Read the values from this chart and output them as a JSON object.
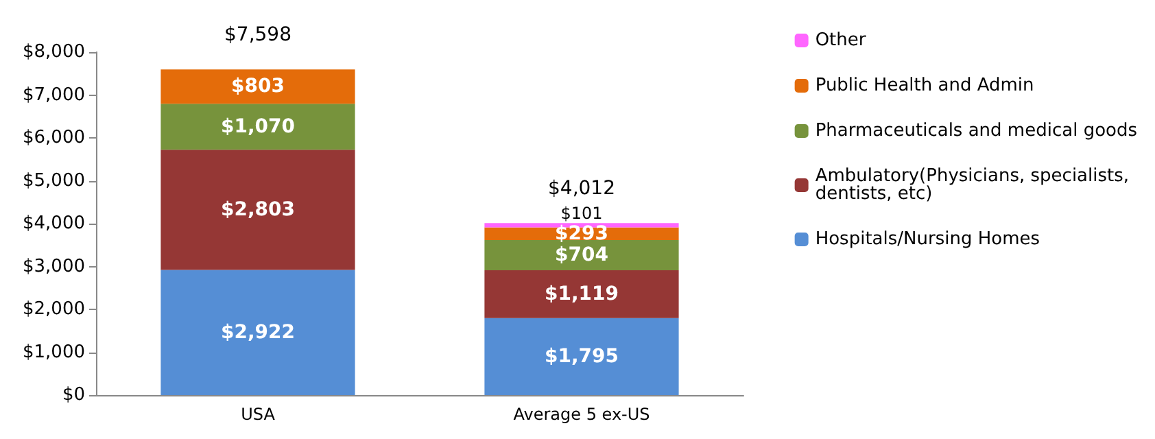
{
  "chart_data": {
    "type": "bar",
    "stacked": true,
    "categories": [
      "USA",
      "Average 5 ex-US"
    ],
    "series": [
      {
        "name": "Hospitals/Nursing Homes",
        "color": "#558ed5",
        "values": [
          2922,
          1795
        ],
        "value_labels": [
          "$2,922",
          "$1,795"
        ]
      },
      {
        "name": "Ambulatory(Physicians, specialists, dentists, etc)",
        "color": "#953735",
        "values": [
          2803,
          1119
        ],
        "value_labels": [
          "$2,803",
          "$1,119"
        ]
      },
      {
        "name": "Pharmaceuticals and medical goods",
        "color": "#77933c",
        "values": [
          1070,
          704
        ],
        "value_labels": [
          "$1,070",
          "$704"
        ]
      },
      {
        "name": "Public Health and Admin",
        "color": "#e46c0a",
        "values": [
          803,
          293
        ],
        "value_labels": [
          "$803",
          "$293"
        ]
      },
      {
        "name": "Other",
        "color": "#ff66ff",
        "values": [
          null,
          101
        ],
        "value_labels": [
          null,
          "$101"
        ]
      }
    ],
    "totals": [
      "$7,598",
      "$4,012"
    ],
    "ylim": [
      0,
      8000
    ],
    "yticks": [
      {
        "value": 0,
        "label": "$0"
      },
      {
        "value": 1000,
        "label": "$1,000"
      },
      {
        "value": 2000,
        "label": "$2,000"
      },
      {
        "value": 3000,
        "label": "$3,000"
      },
      {
        "value": 4000,
        "label": "$4,000"
      },
      {
        "value": 5000,
        "label": "$5,000"
      },
      {
        "value": 6000,
        "label": "$6,000"
      },
      {
        "value": 7000,
        "label": "$7,000"
      },
      {
        "value": 8000,
        "label": "$8,000"
      }
    ],
    "grid": false,
    "legend": "right"
  }
}
